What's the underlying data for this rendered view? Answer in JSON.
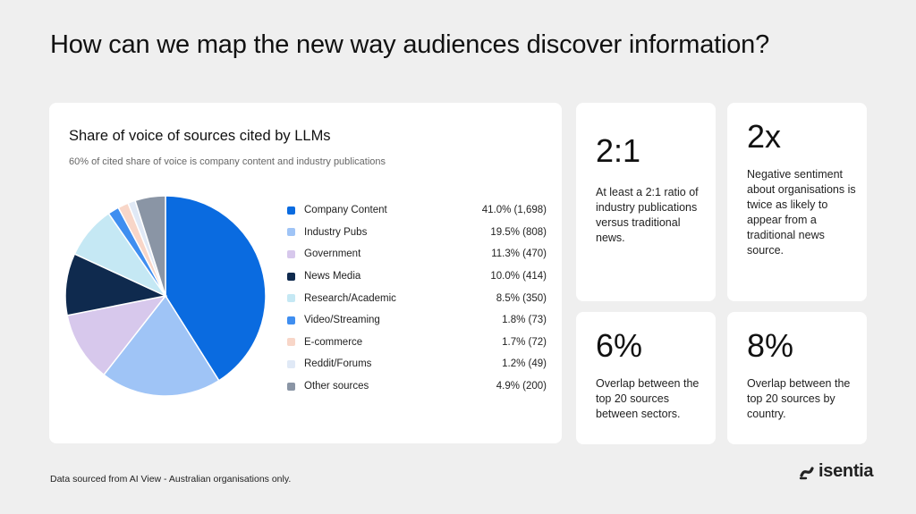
{
  "page": {
    "title": "How can we map the new way audiences discover information?",
    "footnote": "Data sourced from AI View - Australian organisations only.",
    "brand": "isentia"
  },
  "chart_card": {
    "title": "Share of voice of sources cited by LLMs",
    "subtitle": "60% of cited share of voice is company content and industry publications"
  },
  "chart_data": {
    "type": "pie",
    "title": "Share of voice of sources cited by LLMs",
    "subtitle": "60% of cited share of voice is company content and industry publications",
    "legend_position": "right",
    "slices": [
      {
        "label": "Company Content",
        "percent": 41.0,
        "count": 1698,
        "display": "41.0% (1,698)",
        "color": "#0a6be0"
      },
      {
        "label": "Industry Pubs",
        "percent": 19.5,
        "count": 808,
        "display": "19.5% (808)",
        "color": "#9fc4f6"
      },
      {
        "label": "Government",
        "percent": 11.3,
        "count": 470,
        "display": "11.3% (470)",
        "color": "#d7c8ec"
      },
      {
        "label": "News Media",
        "percent": 10.0,
        "count": 414,
        "display": "10.0% (414)",
        "color": "#0f2a4e"
      },
      {
        "label": "Research/Academic",
        "percent": 8.5,
        "count": 350,
        "display": "8.5% (350)",
        "color": "#c5e8f4"
      },
      {
        "label": "Video/Streaming",
        "percent": 1.8,
        "count": 73,
        "display": "1.8% (73)",
        "color": "#3f8ef0"
      },
      {
        "label": "E-commerce",
        "percent": 1.7,
        "count": 72,
        "display": "1.7% (72)",
        "color": "#f8d6c8"
      },
      {
        "label": "Reddit/Forums",
        "percent": 1.2,
        "count": 49,
        "display": "1.2% (49)",
        "color": "#e0e9f6"
      },
      {
        "label": "Other sources",
        "percent": 4.9,
        "count": 200,
        "display": "4.9% (200)",
        "color": "#8a95a5"
      }
    ]
  },
  "stats": [
    {
      "number": "2:1",
      "text": "At least a 2:1 ratio of industry publications versus traditional news."
    },
    {
      "number": "2x",
      "text": "Negative sentiment about organisations is twice as likely to appear from a traditional news source."
    },
    {
      "number": "6%",
      "text": "Overlap between the top 20 sources between sectors."
    },
    {
      "number": "8%",
      "text": "Overlap between the top 20 sources by country."
    }
  ]
}
